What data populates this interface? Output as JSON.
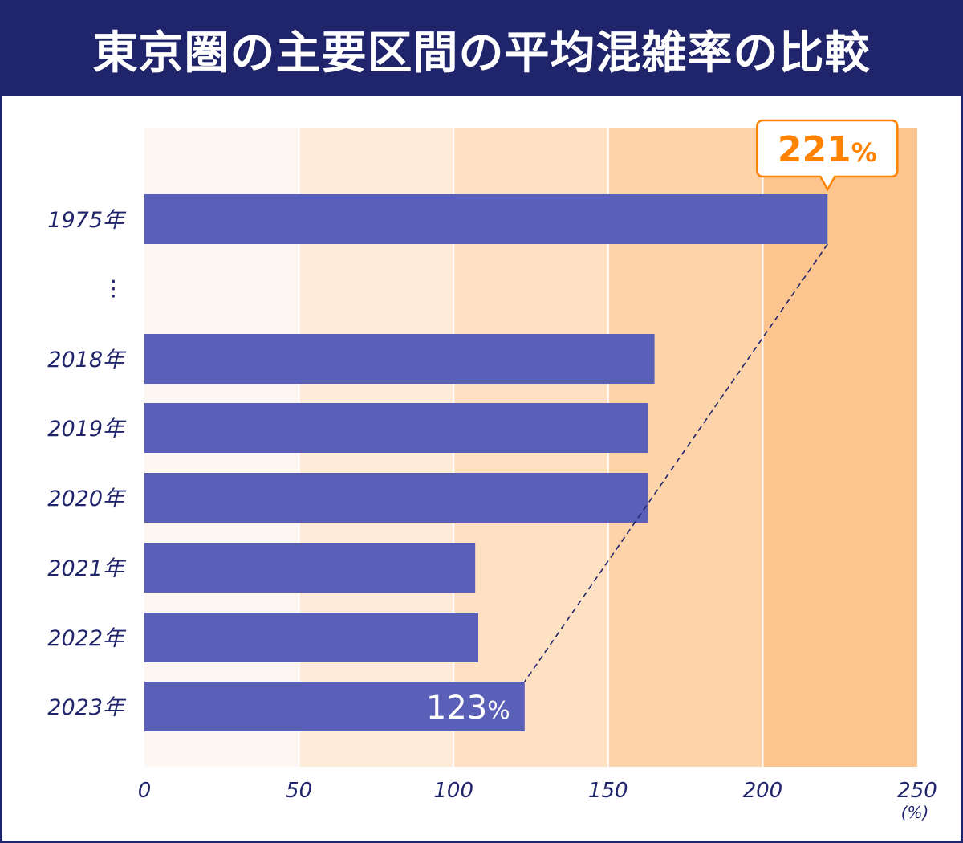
{
  "title": "東京圏の主要区間の平均混雑率の比較",
  "chart_data": {
    "type": "bar",
    "orientation": "horizontal",
    "title": "東京圏の主要区間の平均混雑率の比較",
    "categories": [
      "1975年",
      "⋮",
      "2018年",
      "2019年",
      "2020年",
      "2021年",
      "2022年",
      "2023年"
    ],
    "values": [
      221,
      null,
      165,
      163,
      163,
      107,
      108,
      123
    ],
    "xlim": [
      0,
      250
    ],
    "xticks": [
      "0",
      "50",
      "100",
      "150",
      "200",
      "250"
    ],
    "xunit": "(%)",
    "annotations": [
      {
        "category": "1975年",
        "label": "221%",
        "style": "callout"
      },
      {
        "category": "2023年",
        "label": "123%",
        "style": "inside-bar"
      }
    ],
    "connector": "dashed line from 1975 bar end to 2023 bar end",
    "grid": true,
    "colors": {
      "bar": "#5a5fb7",
      "header": "#20246a",
      "text": "#20246a",
      "callout": "#ff8200",
      "bands": [
        "#fef6f0",
        "#feebda",
        "#fee0c3",
        "#fdd3aa",
        "#fcc590"
      ]
    }
  }
}
